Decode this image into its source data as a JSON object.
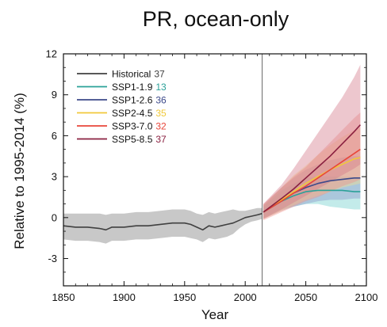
{
  "chart_data": {
    "type": "line",
    "title": "PR, ocean-only",
    "xlabel": "Year",
    "ylabel": "Relative to 1995-2014 (%)",
    "xlim": [
      1850,
      2100
    ],
    "ylim": [
      -5,
      12
    ],
    "xticks": [
      1850,
      1900,
      1950,
      2000,
      2050,
      2100
    ],
    "yticks": [
      -3,
      0,
      3,
      6,
      9,
      12
    ],
    "reference_year": 2014,
    "legend_position": "top-left",
    "series": [
      {
        "name": "Historical",
        "count": "37",
        "color": "#404040",
        "band_color": "#c8c8c8",
        "x": [
          1850,
          1860,
          1870,
          1880,
          1885,
          1890,
          1900,
          1910,
          1920,
          1930,
          1940,
          1950,
          1955,
          1960,
          1965,
          1970,
          1975,
          1980,
          1985,
          1990,
          1995,
          2000,
          2005,
          2010,
          2014
        ],
        "y": [
          -0.6,
          -0.7,
          -0.7,
          -0.8,
          -0.9,
          -0.7,
          -0.7,
          -0.6,
          -0.6,
          -0.5,
          -0.4,
          -0.4,
          -0.5,
          -0.7,
          -0.9,
          -0.6,
          -0.7,
          -0.6,
          -0.5,
          -0.4,
          -0.2,
          0.0,
          0.1,
          0.2,
          0.3
        ],
        "lower": [
          -1.6,
          -1.7,
          -1.7,
          -1.8,
          -1.9,
          -1.7,
          -1.7,
          -1.6,
          -1.6,
          -1.5,
          -1.4,
          -1.4,
          -1.5,
          -1.6,
          -1.8,
          -1.5,
          -1.6,
          -1.5,
          -1.4,
          -1.2,
          -0.8,
          -0.5,
          -0.3,
          -0.2,
          -0.1
        ],
        "upper": [
          0.3,
          0.3,
          0.3,
          0.3,
          0.2,
          0.3,
          0.3,
          0.4,
          0.4,
          0.5,
          0.6,
          0.6,
          0.5,
          0.3,
          0.2,
          0.4,
          0.3,
          0.4,
          0.5,
          0.6,
          0.5,
          0.5,
          0.6,
          0.7,
          0.7
        ]
      },
      {
        "name": "SSP1-1.9",
        "count": "13",
        "color": "#2aa198",
        "band_color": "#6fd0cc",
        "x": [
          2015,
          2030,
          2040,
          2050,
          2060,
          2070,
          2080,
          2090,
          2095
        ],
        "y": [
          0.4,
          1.2,
          1.6,
          1.9,
          2.0,
          2.0,
          2.0,
          1.9,
          1.9
        ],
        "lower": [
          0.0,
          0.6,
          0.8,
          1.0,
          1.0,
          0.8,
          0.7,
          0.6,
          0.6
        ],
        "upper": [
          0.8,
          2.0,
          2.5,
          2.9,
          3.0,
          3.0,
          3.0,
          3.0,
          3.0
        ]
      },
      {
        "name": "SSP1-2.6",
        "count": "36",
        "color": "#3d4a8a",
        "band_color": "#8a95c8",
        "x": [
          2015,
          2030,
          2040,
          2050,
          2060,
          2070,
          2080,
          2090,
          2095
        ],
        "y": [
          0.4,
          1.3,
          1.8,
          2.2,
          2.5,
          2.7,
          2.8,
          2.9,
          2.9
        ],
        "lower": [
          -0.1,
          0.5,
          0.8,
          1.0,
          1.2,
          1.3,
          1.3,
          1.4,
          1.4
        ],
        "upper": [
          0.9,
          2.2,
          2.9,
          3.5,
          3.9,
          4.2,
          4.4,
          4.5,
          4.5
        ]
      },
      {
        "name": "SSP2-4.5",
        "count": "35",
        "color": "#f0c93a",
        "band_color": "#f5e08a",
        "x": [
          2015,
          2030,
          2040,
          2050,
          2060,
          2070,
          2080,
          2090,
          2095
        ],
        "y": [
          0.4,
          1.3,
          1.9,
          2.5,
          3.0,
          3.5,
          3.9,
          4.3,
          4.4
        ],
        "lower": [
          -0.1,
          0.5,
          0.9,
          1.3,
          1.6,
          1.9,
          2.2,
          2.4,
          2.5
        ],
        "upper": [
          0.9,
          2.2,
          3.1,
          3.8,
          4.6,
          5.3,
          5.9,
          6.4,
          6.6
        ]
      },
      {
        "name": "SSP3-7.0",
        "count": "32",
        "color": "#e8463a",
        "band_color": "#f0908a",
        "x": [
          2015,
          2030,
          2040,
          2050,
          2060,
          2070,
          2080,
          2090,
          2095
        ],
        "y": [
          0.4,
          1.2,
          1.8,
          2.3,
          2.9,
          3.5,
          4.1,
          4.7,
          5.0
        ],
        "lower": [
          -0.2,
          0.4,
          0.8,
          1.2,
          1.5,
          1.9,
          2.3,
          2.6,
          2.8
        ],
        "upper": [
          1.0,
          2.2,
          3.0,
          3.7,
          4.6,
          5.5,
          6.4,
          7.3,
          7.7
        ]
      },
      {
        "name": "SSP5-8.5",
        "count": "37",
        "color": "#8a2040",
        "band_color": "#d47a8a",
        "x": [
          2015,
          2030,
          2040,
          2050,
          2060,
          2070,
          2080,
          2090,
          2095
        ],
        "y": [
          0.4,
          1.4,
          2.1,
          2.9,
          3.7,
          4.5,
          5.4,
          6.3,
          6.8
        ],
        "lower": [
          -0.1,
          0.6,
          1.1,
          1.6,
          2.1,
          2.6,
          3.1,
          3.6,
          3.9
        ],
        "upper": [
          1.0,
          2.4,
          3.6,
          4.9,
          6.2,
          7.5,
          8.8,
          10.3,
          11.2
        ]
      }
    ]
  }
}
